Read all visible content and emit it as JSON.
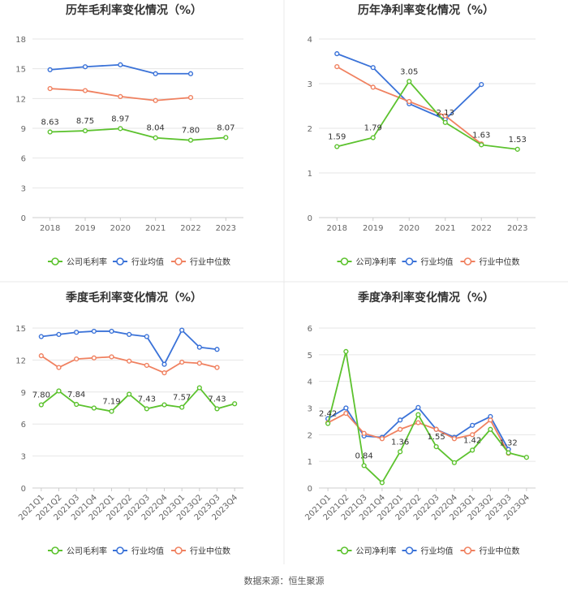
{
  "colors": {
    "company": "#5cc22e",
    "industry_avg": "#3a72d8",
    "industry_median": "#f08160",
    "grid": "#e6e6e6",
    "axis": "#cccccc",
    "tick_text": "#666666",
    "title_text": "#333333",
    "divider": "#e8e8e8"
  },
  "source_note": "数据来源：恒生聚源",
  "chart_data": [
    {
      "id": "annual-gross",
      "type": "line",
      "title": "历年毛利率变化情况（%）",
      "categories": [
        "2018",
        "2019",
        "2020",
        "2021",
        "2022",
        "2023"
      ],
      "ylim": [
        0,
        18
      ],
      "yticks": [
        0,
        3,
        6,
        9,
        12,
        15,
        18
      ],
      "xlabel": "",
      "ylabel": "",
      "grid": true,
      "legend_position": "bottom",
      "series": [
        {
          "name": "公司毛利率",
          "key": "company",
          "values": [
            8.63,
            8.75,
            8.97,
            8.04,
            7.8,
            8.07
          ],
          "labels": [
            "8.63",
            "8.75",
            "8.97",
            "8.04",
            "7.80",
            "8.07"
          ]
        },
        {
          "name": "行业均值",
          "key": "industry_avg",
          "values": [
            14.9,
            15.2,
            15.4,
            14.5,
            14.5,
            null
          ]
        },
        {
          "name": "行业中位数",
          "key": "industry_median",
          "values": [
            13.0,
            12.8,
            12.2,
            11.8,
            12.1,
            null
          ]
        }
      ]
    },
    {
      "id": "annual-net",
      "type": "line",
      "title": "历年净利率变化情况（%）",
      "categories": [
        "2018",
        "2019",
        "2020",
        "2021",
        "2022",
        "2023"
      ],
      "ylim": [
        0,
        4
      ],
      "yticks": [
        0,
        1,
        2,
        3,
        4
      ],
      "xlabel": "",
      "ylabel": "",
      "grid": true,
      "legend_position": "bottom",
      "series": [
        {
          "name": "公司净利率",
          "key": "company",
          "values": [
            1.59,
            1.79,
            3.05,
            2.13,
            1.63,
            1.53
          ],
          "labels": [
            "1.59",
            "1.79",
            "3.05",
            "2.13",
            "1.63",
            "1.53"
          ]
        },
        {
          "name": "行业均值",
          "key": "industry_avg",
          "values": [
            3.67,
            3.36,
            2.55,
            2.2,
            2.98,
            null
          ]
        },
        {
          "name": "行业中位数",
          "key": "industry_median",
          "values": [
            3.38,
            2.92,
            2.6,
            2.28,
            1.65,
            null
          ]
        }
      ]
    },
    {
      "id": "quarterly-gross",
      "type": "line",
      "title": "季度毛利率变化情况（%）",
      "categories": [
        "2021Q1",
        "2021Q2",
        "2021Q3",
        "2021Q4",
        "2022Q1",
        "2022Q2",
        "2022Q3",
        "2022Q4",
        "2023Q1",
        "2023Q2",
        "2023Q3",
        "2023Q4"
      ],
      "ylim": [
        0,
        15
      ],
      "yticks": [
        0,
        3,
        6,
        9,
        12,
        15
      ],
      "xlabel": "",
      "ylabel": "",
      "grid": true,
      "legend_position": "bottom",
      "series": [
        {
          "name": "公司毛利率",
          "key": "company",
          "values": [
            7.8,
            9.1,
            7.84,
            7.5,
            7.19,
            8.8,
            7.43,
            7.8,
            7.57,
            9.4,
            7.43,
            7.9
          ],
          "labels": [
            "7.80",
            null,
            "7.84",
            null,
            "7.19",
            null,
            "7.43",
            null,
            "7.57",
            null,
            "7.43",
            null
          ]
        },
        {
          "name": "行业均值",
          "key": "industry_avg",
          "values": [
            14.2,
            14.4,
            14.6,
            14.7,
            14.7,
            14.4,
            14.2,
            11.6,
            14.8,
            13.2,
            13.0,
            null
          ]
        },
        {
          "name": "行业中位数",
          "key": "industry_median",
          "values": [
            12.4,
            11.3,
            12.1,
            12.2,
            12.3,
            11.9,
            11.5,
            10.8,
            11.8,
            11.7,
            11.3,
            null
          ]
        }
      ]
    },
    {
      "id": "quarterly-net",
      "type": "line",
      "title": "季度净利率变化情况（%）",
      "categories": [
        "2021Q1",
        "2021Q2",
        "2021Q3",
        "2021Q4",
        "2022Q1",
        "2022Q2",
        "2022Q3",
        "2022Q4",
        "2023Q1",
        "2023Q2",
        "2023Q3",
        "2023Q4"
      ],
      "ylim": [
        0,
        6
      ],
      "yticks": [
        0,
        1,
        2,
        3,
        4,
        5,
        6
      ],
      "xlabel": "",
      "ylabel": "",
      "grid": true,
      "legend_position": "bottom",
      "series": [
        {
          "name": "公司净利率",
          "key": "company",
          "values": [
            2.42,
            5.12,
            0.84,
            0.2,
            1.36,
            2.75,
            1.55,
            0.95,
            1.42,
            2.2,
            1.32,
            1.15
          ],
          "labels": [
            "2.42",
            null,
            "0.84",
            null,
            "1.36",
            null,
            "1.55",
            null,
            "1.42",
            null,
            "1.32",
            null
          ]
        },
        {
          "name": "行业均值",
          "key": "industry_avg",
          "values": [
            2.6,
            3.0,
            1.95,
            1.9,
            2.55,
            3.02,
            2.2,
            1.9,
            2.35,
            2.68,
            1.45,
            null
          ]
        },
        {
          "name": "行业中位数",
          "key": "industry_median",
          "values": [
            2.45,
            2.8,
            2.05,
            1.85,
            2.2,
            2.45,
            2.2,
            1.85,
            2.0,
            2.55,
            1.3,
            null
          ]
        }
      ]
    }
  ]
}
